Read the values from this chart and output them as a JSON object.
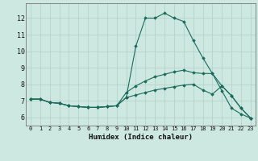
{
  "xlabel": "Humidex (Indice chaleur)",
  "x_ticks": [
    0,
    1,
    2,
    3,
    4,
    5,
    6,
    7,
    8,
    9,
    10,
    11,
    12,
    13,
    14,
    15,
    16,
    17,
    18,
    19,
    20,
    21,
    22,
    23
  ],
  "y_ticks": [
    6,
    7,
    8,
    9,
    10,
    11,
    12
  ],
  "xlim": [
    -0.5,
    23.5
  ],
  "ylim": [
    5.5,
    12.9
  ],
  "bg_color": "#cde8e0",
  "line_color": "#1a6b5a",
  "grid_color": "#b0cfc6",
  "series": [
    [
      7.1,
      7.1,
      6.9,
      6.85,
      6.7,
      6.65,
      6.6,
      6.6,
      6.65,
      6.7,
      7.2,
      10.3,
      12.0,
      12.0,
      12.3,
      12.0,
      11.8,
      10.65,
      9.6,
      8.65,
      7.9,
      7.3,
      6.55,
      5.95
    ],
    [
      7.1,
      7.1,
      6.9,
      6.85,
      6.7,
      6.65,
      6.6,
      6.6,
      6.65,
      6.7,
      7.5,
      7.9,
      8.2,
      8.45,
      8.6,
      8.75,
      8.85,
      8.7,
      8.65,
      8.65,
      7.6,
      6.55,
      6.2,
      5.95
    ],
    [
      7.1,
      7.1,
      6.9,
      6.85,
      6.7,
      6.65,
      6.6,
      6.6,
      6.65,
      6.7,
      7.2,
      7.35,
      7.5,
      7.65,
      7.75,
      7.85,
      7.95,
      8.0,
      7.65,
      7.4,
      7.9,
      7.3,
      6.55,
      5.95
    ]
  ]
}
